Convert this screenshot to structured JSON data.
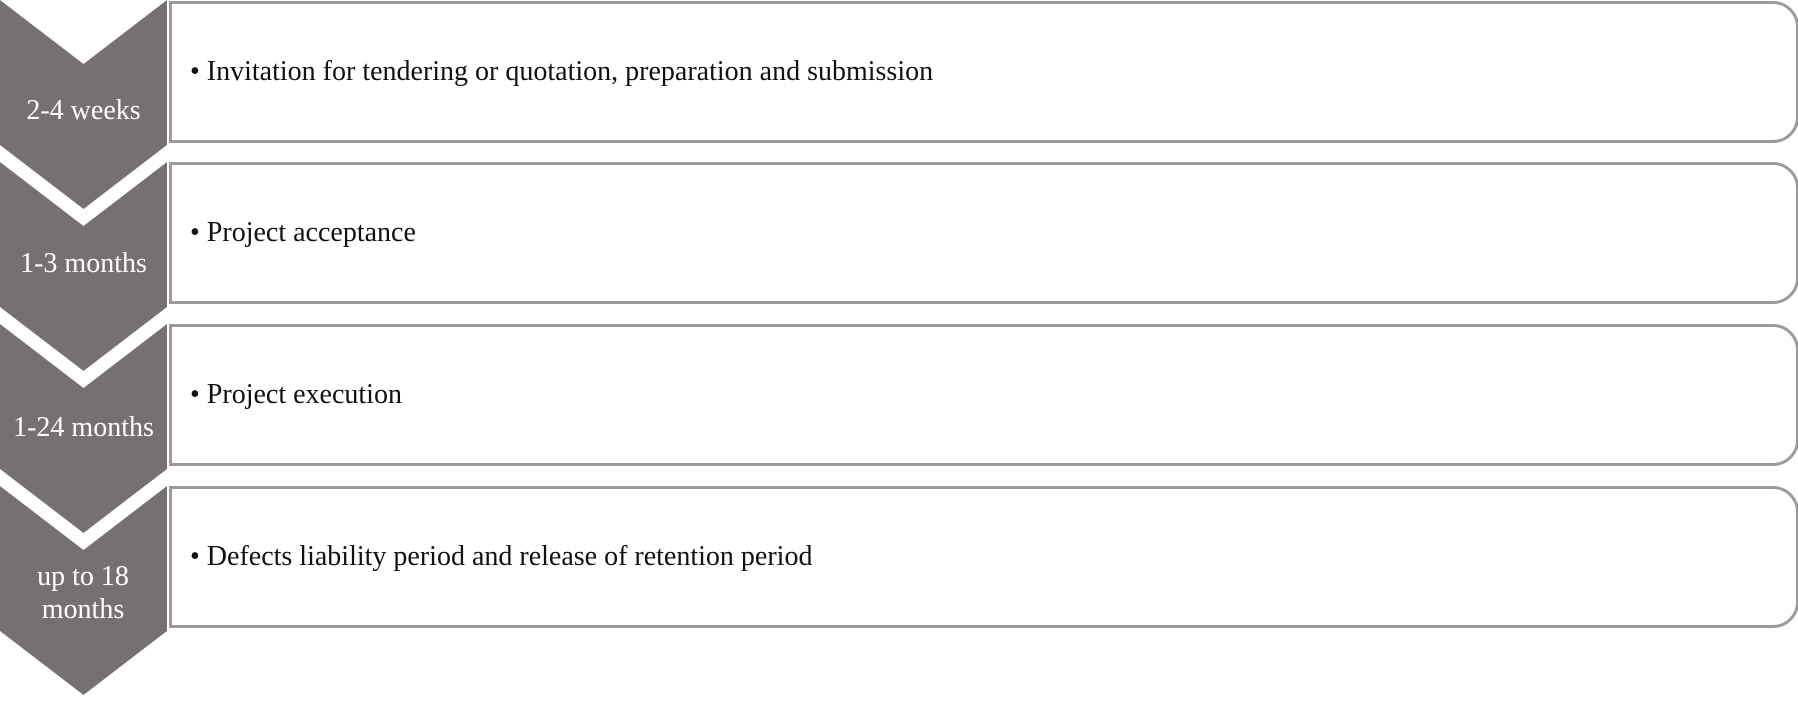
{
  "colors": {
    "chevron": "#767170",
    "box_border": "#9a9a9c"
  },
  "steps": [
    {
      "duration": "2-4 weeks",
      "description": "• Invitation for tendering or quotation, preparation and submission"
    },
    {
      "duration": "1-3 months",
      "description": "• Project acceptance"
    },
    {
      "duration": "1-24 months",
      "description": "• Project execution"
    },
    {
      "duration": "up to 18 months",
      "description": "• Defects liability period and release of retention period"
    }
  ]
}
